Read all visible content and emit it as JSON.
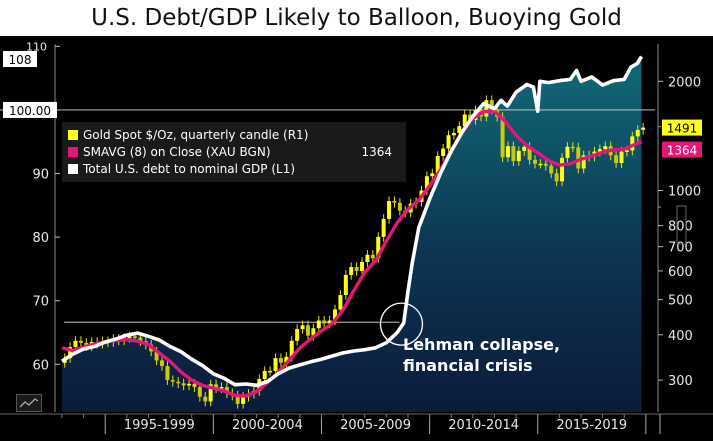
{
  "title": "U.S. Debt/GDP Likely to Balloon, Buoying Gold",
  "legend": {
    "gold": "Gold Spot $/Oz, quarterly candle (R1)",
    "smavg": "SMAVG (8)  on Close (XAU BGN)",
    "smavg_value": "1364",
    "debt": "Total U.S. debt to nominal GDP (L1)"
  },
  "annotation": [
    "Lehman collapse,",
    "financial crisis"
  ],
  "tags": {
    "left_top": "108",
    "left_line": "100.00",
    "right_gold": "1491",
    "right_smavg": "1364"
  },
  "chart_data": {
    "type": "line",
    "x_categories": [
      "1995-1999",
      "2000-2004",
      "2005-2009",
      "2010-2014",
      "2015-2019"
    ],
    "y_left": {
      "ticks": [
        60,
        70,
        80,
        90,
        100,
        110
      ],
      "ylim": [
        52.5,
        111
      ]
    },
    "y_right": {
      "ticks": [
        300,
        400,
        500,
        600,
        700,
        800,
        1000,
        2000
      ],
      "scale": "log",
      "ylim": [
        245,
        2600
      ]
    },
    "reference_line_left": 100,
    "lehman_marker": {
      "year": 2008.7,
      "debt": 66
    },
    "series": [
      {
        "name": "Total U.S. debt to nominal GDP (L1)",
        "axis": "left",
        "color": "#ffffff",
        "points": [
          [
            1993.0,
            60.5
          ],
          [
            1993.5,
            61.6
          ],
          [
            1994.0,
            62.4
          ],
          [
            1994.5,
            62.8
          ],
          [
            1995.0,
            63.5
          ],
          [
            1995.5,
            64.0
          ],
          [
            1996.0,
            64.6
          ],
          [
            1996.5,
            64.9
          ],
          [
            1997.0,
            64.4
          ],
          [
            1997.5,
            63.8
          ],
          [
            1998.0,
            62.8
          ],
          [
            1998.5,
            62.0
          ],
          [
            1999.0,
            60.8
          ],
          [
            1999.5,
            59.8
          ],
          [
            2000.0,
            58.5
          ],
          [
            2000.5,
            57.8
          ],
          [
            2001.0,
            56.8
          ],
          [
            2001.5,
            56.9
          ],
          [
            2002.0,
            56.7
          ],
          [
            2002.5,
            57.3
          ],
          [
            2003.0,
            58.5
          ],
          [
            2003.5,
            59.4
          ],
          [
            2004.0,
            59.9
          ],
          [
            2004.5,
            60.4
          ],
          [
            2005.0,
            60.8
          ],
          [
            2005.5,
            61.3
          ],
          [
            2006.0,
            61.8
          ],
          [
            2006.5,
            62.1
          ],
          [
            2007.0,
            62.3
          ],
          [
            2007.5,
            62.6
          ],
          [
            2008.0,
            63.4
          ],
          [
            2008.5,
            65.0
          ],
          [
            2008.8,
            66.5
          ],
          [
            2009.0,
            71.5
          ],
          [
            2009.2,
            76.0
          ],
          [
            2009.5,
            81.5
          ],
          [
            2010.0,
            86.0
          ],
          [
            2010.5,
            90.0
          ],
          [
            2011.0,
            93.5
          ],
          [
            2011.5,
            96.5
          ],
          [
            2012.0,
            99.0
          ],
          [
            2012.5,
            101.0
          ],
          [
            2013.0,
            100.2
          ],
          [
            2013.3,
            101.5
          ],
          [
            2013.6,
            100.6
          ],
          [
            2014.0,
            102.8
          ],
          [
            2014.5,
            104.0
          ],
          [
            2014.8,
            103.6
          ],
          [
            2015.0,
            99.8
          ],
          [
            2015.1,
            104.5
          ],
          [
            2015.5,
            104.3
          ],
          [
            2016.0,
            104.6
          ],
          [
            2016.5,
            104.8
          ],
          [
            2016.8,
            106.2
          ],
          [
            2017.0,
            104.5
          ],
          [
            2017.5,
            105.2
          ],
          [
            2018.0,
            103.9
          ],
          [
            2018.5,
            104.6
          ],
          [
            2019.0,
            104.8
          ],
          [
            2019.3,
            106.7
          ],
          [
            2019.6,
            107.3
          ],
          [
            2019.8,
            108.4
          ]
        ]
      },
      {
        "name": "SMAVG (8)  on Close (XAU BGN)",
        "axis": "right",
        "color": "#e6157a",
        "points": [
          [
            1993.0,
            368
          ],
          [
            1993.5,
            362
          ],
          [
            1994.0,
            370
          ],
          [
            1994.5,
            377
          ],
          [
            1995.0,
            383
          ],
          [
            1995.5,
            386
          ],
          [
            1996.0,
            388
          ],
          [
            1996.5,
            384
          ],
          [
            1997.0,
            376
          ],
          [
            1997.5,
            356
          ],
          [
            1998.0,
            338
          ],
          [
            1998.5,
            316
          ],
          [
            1999.0,
            300
          ],
          [
            1999.5,
            290
          ],
          [
            2000.0,
            285
          ],
          [
            2000.5,
            280
          ],
          [
            2001.0,
            272
          ],
          [
            2001.5,
            271
          ],
          [
            2002.0,
            279
          ],
          [
            2002.5,
            295
          ],
          [
            2003.0,
            315
          ],
          [
            2003.5,
            340
          ],
          [
            2004.0,
            368
          ],
          [
            2004.5,
            390
          ],
          [
            2005.0,
            410
          ],
          [
            2005.5,
            430
          ],
          [
            2006.0,
            468
          ],
          [
            2006.5,
            530
          ],
          [
            2007.0,
            595
          ],
          [
            2007.5,
            640
          ],
          [
            2008.0,
            725
          ],
          [
            2008.5,
            815
          ],
          [
            2009.0,
            888
          ],
          [
            2009.5,
            940
          ],
          [
            2010.0,
            1030
          ],
          [
            2010.5,
            1140
          ],
          [
            2011.0,
            1290
          ],
          [
            2011.5,
            1440
          ],
          [
            2012.0,
            1580
          ],
          [
            2012.5,
            1650
          ],
          [
            2013.0,
            1655
          ],
          [
            2013.5,
            1550
          ],
          [
            2014.0,
            1420
          ],
          [
            2014.5,
            1330
          ],
          [
            2015.0,
            1270
          ],
          [
            2015.5,
            1210
          ],
          [
            2016.0,
            1175
          ],
          [
            2016.5,
            1185
          ],
          [
            2017.0,
            1220
          ],
          [
            2017.5,
            1245
          ],
          [
            2018.0,
            1275
          ],
          [
            2018.5,
            1295
          ],
          [
            2019.0,
            1300
          ],
          [
            2019.5,
            1340
          ],
          [
            2019.8,
            1364
          ]
        ]
      },
      {
        "name": "Gold Spot $/Oz, quarterly candle (R1)",
        "axis": "right",
        "color": "#ffff1a",
        "type": "candle",
        "closes": [
          [
            1993.0,
            345
          ],
          [
            1993.25,
            370
          ],
          [
            1993.5,
            385
          ],
          [
            1993.75,
            380
          ],
          [
            1994.0,
            372
          ],
          [
            1994.25,
            382
          ],
          [
            1994.5,
            378
          ],
          [
            1994.75,
            384
          ],
          [
            1995.0,
            382
          ],
          [
            1995.25,
            390
          ],
          [
            1995.5,
            386
          ],
          [
            1995.75,
            392
          ],
          [
            1996.0,
            396
          ],
          [
            1996.25,
            393
          ],
          [
            1996.5,
            384
          ],
          [
            1996.75,
            376
          ],
          [
            1997.0,
            360
          ],
          [
            1997.25,
            340
          ],
          [
            1997.5,
            328
          ],
          [
            1997.75,
            300
          ],
          [
            1998.0,
            297
          ],
          [
            1998.25,
            294
          ],
          [
            1998.5,
            290
          ],
          [
            1998.75,
            293
          ],
          [
            1999.0,
            287
          ],
          [
            1999.25,
            270
          ],
          [
            1999.5,
            262
          ],
          [
            1999.75,
            292
          ],
          [
            2000.0,
            285
          ],
          [
            2000.25,
            287
          ],
          [
            2000.5,
            276
          ],
          [
            2000.75,
            272
          ],
          [
            2001.0,
            258
          ],
          [
            2001.25,
            270
          ],
          [
            2001.5,
            275
          ],
          [
            2001.75,
            280
          ],
          [
            2002.0,
            302
          ],
          [
            2002.25,
            318
          ],
          [
            2002.5,
            318
          ],
          [
            2002.75,
            345
          ],
          [
            2003.0,
            335
          ],
          [
            2003.25,
            348
          ],
          [
            2003.5,
            385
          ],
          [
            2003.75,
            415
          ],
          [
            2004.0,
            425
          ],
          [
            2004.25,
            398
          ],
          [
            2004.5,
            417
          ],
          [
            2004.75,
            438
          ],
          [
            2005.0,
            430
          ],
          [
            2005.25,
            438
          ],
          [
            2005.5,
            470
          ],
          [
            2005.75,
            515
          ],
          [
            2006.0,
            585
          ],
          [
            2006.25,
            615
          ],
          [
            2006.5,
            600
          ],
          [
            2006.75,
            635
          ],
          [
            2007.0,
            665
          ],
          [
            2007.25,
            650
          ],
          [
            2007.5,
            745
          ],
          [
            2007.75,
            835
          ],
          [
            2008.0,
            935
          ],
          [
            2008.25,
            925
          ],
          [
            2008.5,
            880
          ],
          [
            2008.75,
            870
          ],
          [
            2009.0,
            920
          ],
          [
            2009.25,
            930
          ],
          [
            2009.5,
            1000
          ],
          [
            2009.75,
            1095
          ],
          [
            2010.0,
            1115
          ],
          [
            2010.25,
            1245
          ],
          [
            2010.5,
            1305
          ],
          [
            2010.75,
            1420
          ],
          [
            2011.0,
            1440
          ],
          [
            2011.25,
            1505
          ],
          [
            2011.5,
            1620
          ],
          [
            2011.75,
            1565
          ],
          [
            2012.0,
            1665
          ],
          [
            2012.25,
            1600
          ],
          [
            2012.5,
            1775
          ],
          [
            2012.75,
            1675
          ],
          [
            2013.0,
            1595
          ],
          [
            2013.25,
            1235
          ],
          [
            2013.5,
            1325
          ],
          [
            2013.75,
            1205
          ],
          [
            2014.0,
            1285
          ],
          [
            2014.25,
            1320
          ],
          [
            2014.5,
            1215
          ],
          [
            2014.75,
            1185
          ],
          [
            2015.0,
            1185
          ],
          [
            2015.25,
            1170
          ],
          [
            2015.5,
            1115
          ],
          [
            2015.75,
            1060
          ],
          [
            2016.0,
            1230
          ],
          [
            2016.25,
            1320
          ],
          [
            2016.5,
            1315
          ],
          [
            2016.75,
            1150
          ],
          [
            2017.0,
            1250
          ],
          [
            2017.25,
            1240
          ],
          [
            2017.5,
            1280
          ],
          [
            2017.75,
            1300
          ],
          [
            2018.0,
            1325
          ],
          [
            2018.25,
            1250
          ],
          [
            2018.5,
            1190
          ],
          [
            2018.75,
            1280
          ],
          [
            2019.0,
            1290
          ],
          [
            2019.25,
            1410
          ],
          [
            2019.5,
            1470
          ],
          [
            2019.75,
            1491
          ]
        ]
      }
    ]
  }
}
